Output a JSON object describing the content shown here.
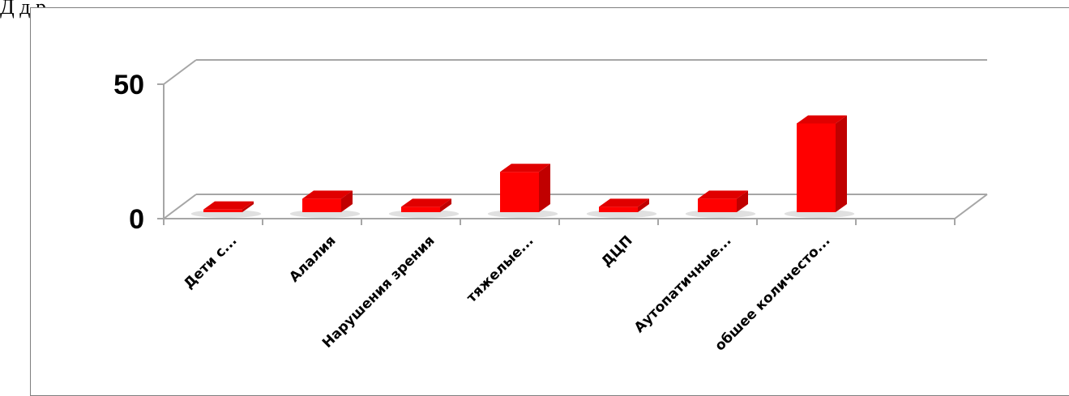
{
  "header": {
    "partial_text": "Д                   д          р"
  },
  "chart_data": {
    "type": "bar",
    "categories": [
      "Дети с...",
      "Алалия",
      "Нарушения зрения",
      "тяжелые...",
      "ДЦП",
      "Аутопатичные...",
      "обшее количесто..."
    ],
    "values": [
      1,
      5,
      2,
      15,
      2,
      5,
      33
    ],
    "title": "",
    "xlabel": "",
    "ylabel": "",
    "ylim": [
      0,
      50
    ],
    "yticks": [
      0,
      50
    ],
    "grid": true,
    "legend": "none",
    "three_d": true,
    "bar_color": "#ff0000",
    "bar_side_color": "#c00000",
    "bar_top_color": "#e00000",
    "axis_color": "#a6a6a6"
  }
}
